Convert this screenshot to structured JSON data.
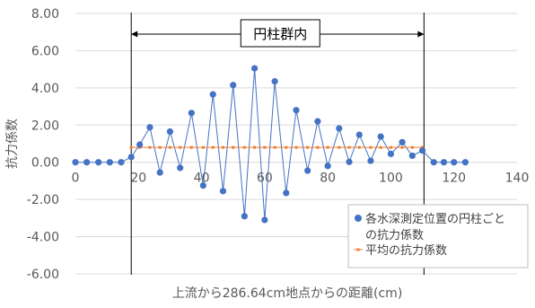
{
  "chart_data": {
    "type": "scatter",
    "xlabel": "上流から286.64cm地点からの距離(cm)",
    "ylabel": "抗力係数",
    "xlim": [
      0,
      140
    ],
    "ylim": [
      -6,
      8
    ],
    "x_ticks": [
      "0",
      "20",
      "40",
      "60",
      "80",
      "100",
      "120",
      "140"
    ],
    "y_ticks": [
      "8.00",
      "6.00",
      "4.00",
      "2.00",
      "0.00",
      "-2.00",
      "-4.00",
      "-6.00"
    ],
    "grid": "horizontal",
    "legend_position": "bottom-right",
    "region": {
      "label": "円柱群内",
      "x_start": 17.7,
      "x_end": 110.5
    },
    "series": [
      {
        "name": "各水深測定位置の円柱ごとの抗力係数",
        "color": "#4472C4",
        "marker": "circle",
        "x": [
          0,
          3.6,
          7.3,
          10.9,
          14.5,
          17.7,
          20.4,
          23.6,
          26.8,
          30,
          33.2,
          36.8,
          40.5,
          43.6,
          46.8,
          50,
          53.6,
          56.8,
          60,
          63.2,
          66.8,
          70,
          73.6,
          76.8,
          80,
          83.6,
          86.8,
          90,
          93.6,
          96.8,
          100,
          103.6,
          106.8,
          110,
          113.6,
          116.8,
          120,
          123.6
        ],
        "y": [
          0,
          0,
          0,
          0,
          0,
          0.28,
          0.95,
          1.88,
          -0.55,
          1.65,
          -0.3,
          2.65,
          -1.25,
          3.65,
          -1.55,
          4.15,
          -2.9,
          5.05,
          -3.1,
          4.35,
          -1.65,
          2.8,
          -0.45,
          2.2,
          -0.2,
          1.82,
          0.02,
          1.48,
          0.08,
          1.38,
          0.45,
          1.08,
          0.35,
          0.63,
          0,
          0,
          0,
          0
        ]
      },
      {
        "name": "平均の抗力係数",
        "color": "#ED7D31",
        "marker": "dash",
        "x": [
          17.7,
          20.4,
          23.6,
          26.8,
          30,
          33.2,
          36.8,
          40.5,
          43.6,
          46.8,
          50,
          53.6,
          56.8,
          60,
          63.2,
          66.8,
          70,
          73.6,
          76.8,
          80,
          83.6,
          86.8,
          90,
          93.6,
          96.8,
          100,
          103.6,
          106.8,
          110
        ],
        "y": [
          0.8,
          0.8,
          0.8,
          0.8,
          0.8,
          0.8,
          0.8,
          0.8,
          0.8,
          0.8,
          0.8,
          0.8,
          0.8,
          0.8,
          0.8,
          0.8,
          0.8,
          0.8,
          0.8,
          0.8,
          0.8,
          0.8,
          0.8,
          0.8,
          0.8,
          0.8,
          0.8,
          0.8,
          0.8
        ]
      }
    ]
  },
  "legend": {
    "series1_line1": "各水深測定位置の円柱ごと",
    "series1_line2": "の抗力係数",
    "series2": "平均の抗力係数"
  }
}
